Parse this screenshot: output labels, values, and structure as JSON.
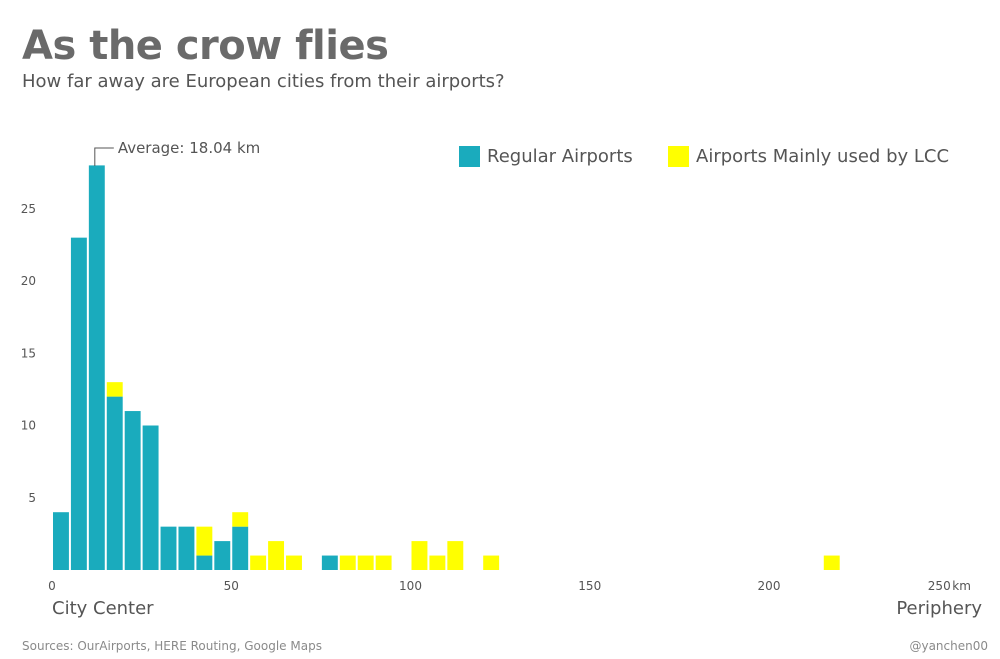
{
  "title": "As the crow flies",
  "subtitle": "How far away are European cities from their airports?",
  "sources": "Sources: OurAirports, HERE Routing, Google Maps",
  "credit": "@yanchen00",
  "chart_data": {
    "type": "bar",
    "stacked": true,
    "bin_width_km": 5,
    "x_start_km": [
      0,
      5,
      10,
      15,
      20,
      25,
      30,
      35,
      40,
      45,
      50,
      55,
      60,
      65,
      70,
      75,
      80,
      85,
      90,
      95,
      100,
      105,
      110,
      115,
      120,
      125,
      215
    ],
    "series": [
      {
        "name": "Regular Airports",
        "color": "#1aabbd",
        "values": [
          4,
          23,
          28,
          12,
          11,
          10,
          3,
          3,
          1,
          2,
          3,
          0,
          0,
          0,
          0,
          1,
          0,
          0,
          0,
          0,
          0,
          0,
          0,
          0,
          0,
          0,
          0
        ]
      },
      {
        "name": "Airports Mainly used by LCC",
        "color": "#ffff00",
        "values": [
          0,
          0,
          0,
          1,
          0,
          0,
          0,
          0,
          2,
          0,
          1,
          1,
          2,
          1,
          0,
          0,
          1,
          1,
          1,
          0,
          2,
          1,
          2,
          0,
          1,
          0,
          1
        ]
      }
    ],
    "xlim": [
      0,
      250
    ],
    "ylim": [
      0,
      28
    ],
    "x_ticks": [
      {
        "value": 0,
        "label": "0"
      },
      {
        "value": 50,
        "label": "50"
      },
      {
        "value": 100,
        "label": "100"
      },
      {
        "value": 150,
        "label": "150"
      },
      {
        "value": 200,
        "label": "200"
      },
      {
        "value": 250,
        "label": "250"
      }
    ],
    "x_unit": "km",
    "y_ticks": [
      5,
      10,
      15,
      20,
      25
    ],
    "x_left_label": "City Center",
    "x_right_label": "Periphery",
    "annotation": "Average: 18.04 km",
    "legend_position": "top-right",
    "grid": false
  }
}
